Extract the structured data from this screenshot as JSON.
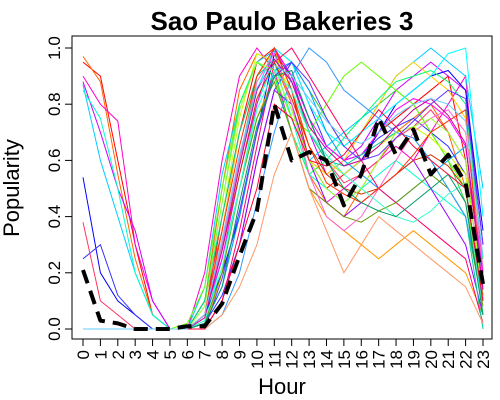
{
  "chart_data": {
    "type": "line",
    "title": "Sao Paulo Bakeries 3",
    "xlabel": "Hour",
    "ylabel": "Popularity",
    "x": [
      0,
      1,
      2,
      3,
      4,
      5,
      6,
      7,
      8,
      9,
      10,
      11,
      12,
      13,
      14,
      15,
      16,
      17,
      18,
      19,
      20,
      21,
      22,
      23
    ],
    "x_tick_labels": [
      "0",
      "1",
      "2",
      "3",
      "4",
      "5",
      "6",
      "7",
      "8",
      "9",
      "10",
      "11",
      "12",
      "13",
      "14",
      "15",
      "16",
      "17",
      "18",
      "19",
      "20",
      "21",
      "22",
      "23"
    ],
    "y_tick_labels": [
      "0.0",
      "0.2",
      "0.4",
      "0.6",
      "0.8",
      "1.0"
    ],
    "y_ticks": [
      0,
      0.2,
      0.4,
      0.6,
      0.8,
      1.0
    ],
    "xlim": [
      0,
      23
    ],
    "ylim": [
      0,
      1
    ],
    "grid": false,
    "highlight_series": {
      "values": [
        0.21,
        0.03,
        0.02,
        0.0,
        0.0,
        0.0,
        0.01,
        0.01,
        0.09,
        0.26,
        0.42,
        0.8,
        0.6,
        0.63,
        0.6,
        0.44,
        0.55,
        0.75,
        0.62,
        0.71,
        0.55,
        0.62,
        0.52,
        0.16
      ],
      "color": "#000000",
      "style": "dashed",
      "stroke": "thick"
    },
    "series": [
      {
        "color": "#ff0000",
        "values": [
          0.95,
          0.9,
          0.6,
          0.3,
          0.05,
          0,
          0,
          0.05,
          0.4,
          0.7,
          0.95,
          1.0,
          0.85,
          0.6,
          0.5,
          0.55,
          0.6,
          0.7,
          0.75,
          0.8,
          0.85,
          0.9,
          0.6,
          0.1
        ]
      },
      {
        "color": "#ff6600",
        "values": [
          0.97,
          0.88,
          0.55,
          0.25,
          0.05,
          0,
          0,
          0.1,
          0.5,
          0.85,
          0.98,
          0.95,
          0.8,
          0.55,
          0.45,
          0.4,
          0.5,
          0.6,
          0.7,
          0.75,
          0.8,
          0.7,
          0.5,
          0.05
        ]
      },
      {
        "color": "#ff00cc",
        "values": [
          0.9,
          0.8,
          0.74,
          0.3,
          0.1,
          0,
          0,
          0.2,
          0.6,
          0.9,
          1.0,
          0.92,
          0.7,
          0.5,
          0.45,
          0.5,
          0.55,
          0.6,
          0.65,
          0.6,
          0.7,
          0.8,
          0.9,
          0.2
        ]
      },
      {
        "color": "#cc00ff",
        "values": [
          0.88,
          0.7,
          0.5,
          0.35,
          0.1,
          0,
          0,
          0.05,
          0.3,
          0.6,
          0.85,
          1.0,
          0.9,
          0.7,
          0.55,
          0.6,
          0.65,
          0.75,
          0.85,
          0.9,
          0.95,
          0.9,
          0.85,
          0.3
        ]
      },
      {
        "color": "#00ccff",
        "values": [
          0.87,
          0.6,
          0.4,
          0.2,
          0.05,
          0,
          0,
          0.15,
          0.55,
          0.8,
          0.95,
          0.99,
          0.8,
          0.6,
          0.65,
          0.7,
          0.75,
          0.8,
          0.9,
          0.95,
          1.0,
          0.95,
          0.9,
          0.5
        ]
      },
      {
        "color": "#00ffcc",
        "values": [
          0.85,
          0.75,
          0.5,
          0.2,
          0.05,
          0,
          0,
          0.02,
          0.25,
          0.5,
          0.8,
          0.95,
          0.75,
          0.55,
          0.5,
          0.45,
          0.5,
          0.55,
          0.6,
          0.55,
          0.5,
          0.45,
          0.4,
          0.1
        ]
      },
      {
        "color": "#0000ff",
        "values": [
          0.54,
          0.2,
          0.1,
          0.05,
          0,
          0,
          0,
          0.05,
          0.2,
          0.4,
          0.7,
          0.98,
          0.9,
          0.75,
          0.6,
          0.55,
          0.6,
          0.7,
          0.8,
          0.85,
          0.9,
          0.92,
          0.85,
          0.35
        ]
      },
      {
        "color": "#3333ff",
        "values": [
          0.25,
          0.3,
          0.12,
          0.05,
          0,
          0,
          0,
          0.02,
          0.12,
          0.3,
          0.6,
          0.85,
          0.95,
          0.8,
          0.65,
          0.6,
          0.62,
          0.68,
          0.72,
          0.75,
          0.7,
          0.65,
          0.55,
          0.15
        ]
      },
      {
        "color": "#ff3366",
        "values": [
          0.38,
          0.1,
          0.05,
          0,
          0,
          0,
          0,
          0.1,
          0.35,
          0.7,
          0.9,
          1.0,
          0.88,
          0.7,
          0.6,
          0.52,
          0.55,
          0.6,
          0.68,
          0.72,
          0.78,
          0.7,
          0.6,
          0.2
        ]
      },
      {
        "color": "#33cc33",
        "values": [
          0.0,
          0,
          0,
          0,
          0,
          0,
          0,
          0.05,
          0.3,
          0.6,
          0.9,
          1.0,
          0.95,
          0.85,
          0.75,
          0.65,
          0.7,
          0.8,
          0.85,
          0.8,
          0.7,
          0.6,
          0.45,
          0.1
        ]
      },
      {
        "color": "#66ff00",
        "values": [
          0.0,
          0,
          0,
          0,
          0,
          0,
          0.02,
          0.15,
          0.5,
          0.8,
          0.95,
          0.9,
          0.75,
          0.7,
          0.8,
          0.9,
          0.95,
          0.9,
          0.85,
          0.8,
          0.7,
          0.6,
          0.5,
          0.05
        ]
      },
      {
        "color": "#ccff00",
        "values": [
          0.0,
          0,
          0,
          0,
          0,
          0,
          0,
          0.1,
          0.4,
          0.75,
          0.98,
          0.95,
          0.85,
          0.7,
          0.6,
          0.55,
          0.6,
          0.65,
          0.7,
          0.72,
          0.68,
          0.62,
          0.55,
          0.15
        ]
      },
      {
        "color": "#ffcc00",
        "values": [
          0.0,
          0,
          0,
          0,
          0,
          0,
          0,
          0.05,
          0.35,
          0.7,
          0.9,
          1.0,
          0.8,
          0.6,
          0.55,
          0.6,
          0.7,
          0.8,
          0.9,
          0.95,
          0.9,
          0.85,
          0.75,
          0.2
        ]
      },
      {
        "color": "#ff9900",
        "values": [
          0.0,
          0,
          0,
          0,
          0,
          0,
          0,
          0,
          0.2,
          0.5,
          0.75,
          0.9,
          0.7,
          0.5,
          0.4,
          0.35,
          0.3,
          0.25,
          0.3,
          0.35,
          0.3,
          0.25,
          0.2,
          0.05
        ]
      },
      {
        "color": "#00ff66",
        "values": [
          0.0,
          0,
          0,
          0,
          0,
          0,
          0,
          0.1,
          0.45,
          0.8,
          0.95,
          0.9,
          0.7,
          0.55,
          0.6,
          0.68,
          0.75,
          0.82,
          0.88,
          0.9,
          0.92,
          0.88,
          0.8,
          0.25
        ]
      },
      {
        "color": "#00ffff",
        "values": [
          0.0,
          0,
          0,
          0,
          0,
          0,
          0,
          0.05,
          0.3,
          0.6,
          0.85,
          1.0,
          0.95,
          0.8,
          0.7,
          0.65,
          0.7,
          0.75,
          0.8,
          0.85,
          0.9,
          0.98,
          1.0,
          0.4
        ]
      },
      {
        "color": "#0099ff",
        "values": [
          0.0,
          0,
          0,
          0,
          0,
          0,
          0,
          0.02,
          0.15,
          0.4,
          0.7,
          0.92,
          0.95,
          0.85,
          0.7,
          0.6,
          0.55,
          0.5,
          0.45,
          0.5,
          0.55,
          0.6,
          0.65,
          0.18
        ]
      },
      {
        "color": "#9900ff",
        "values": [
          0.0,
          0,
          0,
          0,
          0,
          0,
          0,
          0,
          0.1,
          0.3,
          0.6,
          0.85,
          0.8,
          0.6,
          0.45,
          0.4,
          0.45,
          0.5,
          0.55,
          0.6,
          0.5,
          0.4,
          0.3,
          0.05
        ]
      },
      {
        "color": "#ff00ff",
        "values": [
          0.0,
          0,
          0,
          0,
          0,
          0,
          0,
          0.05,
          0.25,
          0.55,
          0.8,
          1.0,
          0.9,
          0.75,
          0.65,
          0.6,
          0.62,
          0.7,
          0.78,
          0.82,
          0.8,
          0.75,
          0.65,
          0.2
        ]
      },
      {
        "color": "#ff0066",
        "values": [
          0.0,
          0,
          0,
          0,
          0,
          0,
          0,
          0,
          0.1,
          0.35,
          0.65,
          0.95,
          1.0,
          0.9,
          0.8,
          0.7,
          0.6,
          0.5,
          0.45,
          0.4,
          0.35,
          0.3,
          0.25,
          0.02
        ]
      },
      {
        "color": "#669900",
        "values": [
          0.0,
          0,
          0,
          0,
          0,
          0,
          0,
          0.02,
          0.2,
          0.5,
          0.75,
          0.88,
          0.7,
          0.5,
          0.45,
          0.4,
          0.38,
          0.42,
          0.45,
          0.5,
          0.55,
          0.5,
          0.4,
          0.08
        ]
      },
      {
        "color": "#cc3300",
        "values": [
          0.0,
          0,
          0,
          0,
          0,
          0,
          0,
          0.05,
          0.28,
          0.55,
          0.82,
          0.95,
          0.82,
          0.65,
          0.55,
          0.5,
          0.48,
          0.5,
          0.55,
          0.6,
          0.62,
          0.58,
          0.5,
          0.12
        ]
      },
      {
        "color": "#00cc99",
        "values": [
          0.0,
          0,
          0,
          0,
          0,
          0,
          0,
          0.1,
          0.4,
          0.7,
          0.9,
          0.96,
          0.88,
          0.7,
          0.6,
          0.58,
          0.62,
          0.66,
          0.7,
          0.68,
          0.6,
          0.5,
          0.4,
          0.0
        ]
      },
      {
        "color": "#3399ff",
        "values": [
          0.0,
          0,
          0,
          0,
          0,
          0,
          0,
          0,
          0.05,
          0.2,
          0.45,
          0.7,
          0.9,
          1.0,
          0.95,
          0.85,
          0.8,
          0.75,
          0.7,
          0.68,
          0.6,
          0.5,
          0.4,
          0.1
        ]
      },
      {
        "color": "#ff66cc",
        "values": [
          0.0,
          0,
          0,
          0,
          0,
          0,
          0,
          0.05,
          0.3,
          0.6,
          0.88,
          0.98,
          0.8,
          0.55,
          0.4,
          0.35,
          0.4,
          0.5,
          0.6,
          0.7,
          0.75,
          0.78,
          0.7,
          0.22
        ]
      },
      {
        "color": "#ff3300",
        "values": [
          0.0,
          0,
          0,
          0,
          0,
          0,
          0,
          0.05,
          0.35,
          0.65,
          0.9,
          1.0,
          0.85,
          0.65,
          0.52,
          0.48,
          0.45,
          0.5,
          0.55,
          0.62,
          0.7,
          0.74,
          0.78,
          0.1
        ]
      },
      {
        "color": "#99ff33",
        "values": [
          0.0,
          0,
          0,
          0,
          0,
          0,
          0,
          0.08,
          0.45,
          0.78,
          0.95,
          0.92,
          0.78,
          0.6,
          0.5,
          0.45,
          0.5,
          0.6,
          0.7,
          0.72,
          0.75,
          0.7,
          0.6,
          0.1
        ]
      },
      {
        "color": "#33ffcc",
        "values": [
          0.0,
          0,
          0,
          0,
          0,
          0,
          0,
          0.03,
          0.22,
          0.5,
          0.78,
          0.92,
          0.85,
          0.7,
          0.62,
          0.55,
          0.5,
          0.45,
          0.4,
          0.38,
          0.42,
          0.48,
          0.52,
          0.05
        ]
      },
      {
        "color": "#6633ff",
        "values": [
          0.0,
          0,
          0,
          0,
          0,
          0,
          0,
          0,
          0.18,
          0.42,
          0.7,
          0.9,
          0.95,
          0.88,
          0.75,
          0.65,
          0.6,
          0.62,
          0.68,
          0.74,
          0.8,
          0.85,
          0.82,
          0.3
        ]
      },
      {
        "color": "#ff9966",
        "values": [
          0.0,
          0,
          0,
          0,
          0,
          0,
          0,
          0,
          0.05,
          0.15,
          0.3,
          0.55,
          0.7,
          0.5,
          0.35,
          0.2,
          0.3,
          0.4,
          0.35,
          0.3,
          0.25,
          0.2,
          0.15,
          0.02
        ]
      },
      {
        "color": "#009966",
        "values": [
          0.0,
          0,
          0,
          0,
          0,
          0,
          0,
          0.02,
          0.15,
          0.45,
          0.72,
          0.9,
          0.92,
          0.75,
          0.6,
          0.5,
          0.45,
          0.42,
          0.4,
          0.45,
          0.5,
          0.55,
          0.45,
          0.05
        ]
      },
      {
        "color": "#cc0099",
        "values": [
          0.0,
          0,
          0,
          0,
          0,
          0,
          0,
          0.04,
          0.28,
          0.58,
          0.85,
          0.96,
          0.88,
          0.72,
          0.64,
          0.58,
          0.6,
          0.65,
          0.72,
          0.78,
          0.82,
          0.76,
          0.66,
          0.14
        ]
      },
      {
        "color": "#ff0033",
        "values": [
          0.0,
          0,
          0,
          0,
          0,
          0,
          0,
          0,
          0.1,
          0.3,
          0.5,
          0.8,
          0.75,
          0.6,
          0.58,
          0.62,
          0.7,
          0.78,
          0.72,
          0.65,
          0.6,
          0.55,
          0.5,
          0.1
        ]
      },
      {
        "color": "#66ccff",
        "values": [
          0.0,
          0,
          0,
          0,
          0,
          0,
          0,
          0.05,
          0.32,
          0.62,
          0.86,
          0.94,
          0.9,
          0.82,
          0.74,
          0.68,
          0.66,
          0.7,
          0.76,
          0.8,
          0.82,
          0.8,
          0.74,
          0.26
        ]
      }
    ]
  }
}
